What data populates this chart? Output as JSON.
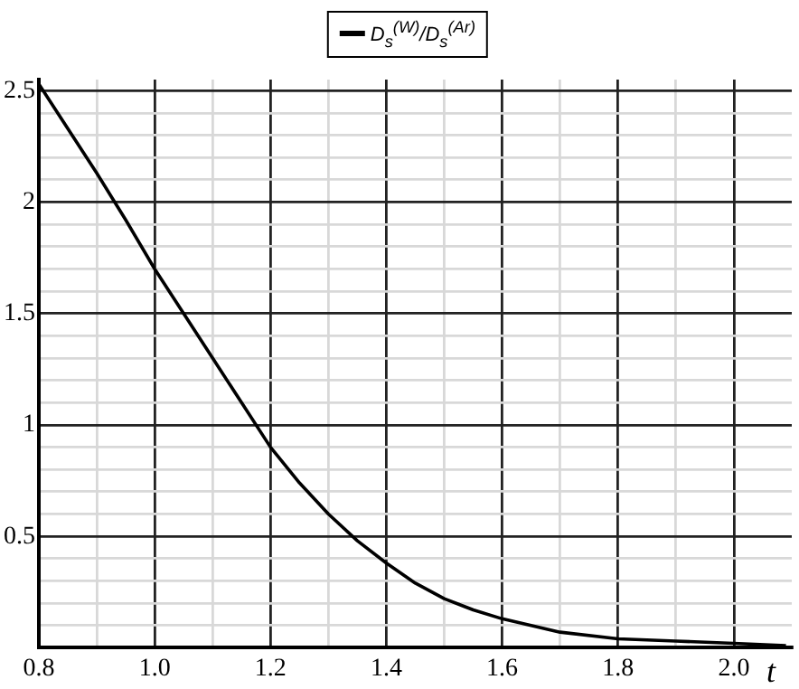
{
  "chart_data": {
    "type": "line",
    "xlabel": "t",
    "legend": "top",
    "x": [
      0.8,
      0.85,
      0.9,
      0.95,
      1.0,
      1.05,
      1.1,
      1.15,
      1.2,
      1.25,
      1.3,
      1.35,
      1.4,
      1.45,
      1.5,
      1.55,
      1.6,
      1.7,
      1.8,
      1.9,
      2.0,
      2.09
    ],
    "series": [
      {
        "name": "D$_{s}$$^{(W)}$/D$_{s}$$^{(Ar)}$",
        "color": "#000000",
        "values": [
          2.53,
          2.33,
          2.13,
          1.92,
          1.7,
          1.5,
          1.3,
          1.1,
          0.9,
          0.74,
          0.6,
          0.48,
          0.38,
          0.29,
          0.22,
          0.17,
          0.13,
          0.07,
          0.04,
          0.03,
          0.02,
          0.01
        ]
      }
    ],
    "xlim": [
      0.8,
      2.1
    ],
    "ylim": [
      0,
      2.55
    ],
    "xticks": [
      0.8,
      {
        "value": 0.9,
        "label": null
      },
      {
        "value": 1,
        "label": "1.0"
      },
      {
        "value": 1.1,
        "label": null
      },
      1.2,
      {
        "value": 1.3,
        "label": null
      },
      1.4,
      {
        "value": 1.5,
        "label": null
      },
      1.6,
      {
        "value": 1.7,
        "label": null
      },
      1.8,
      {
        "value": 1.9,
        "label": null
      },
      {
        "value": 2,
        "label": "2.0"
      }
    ],
    "yticks": [
      {
        "value": 0.1,
        "label": null
      },
      {
        "value": 0.2,
        "label": null
      },
      {
        "value": 0.3,
        "label": null
      },
      {
        "value": 0.4,
        "label": null
      },
      0.5,
      {
        "value": 0.6,
        "label": null
      },
      {
        "value": 0.7,
        "label": null
      },
      {
        "value": 0.8,
        "label": null
      },
      {
        "value": 0.9,
        "label": null
      },
      1,
      {
        "value": 1.1,
        "label": null
      },
      {
        "value": 1.2,
        "label": null
      },
      {
        "value": 1.3,
        "label": null
      },
      {
        "value": 1.4,
        "label": null
      },
      1.5,
      {
        "value": 1.6,
        "label": null
      },
      {
        "value": 1.7,
        "label": null
      },
      {
        "value": 1.8,
        "label": null
      },
      {
        "value": 1.9,
        "label": null
      },
      2,
      {
        "value": 2.1,
        "label": null
      },
      {
        "value": 2.2,
        "label": null
      },
      {
        "value": 2.3,
        "label": null
      },
      {
        "value": 2.4,
        "label": null
      },
      2.5
    ],
    "grid": true,
    "marker": "none",
    "line_style": "solid"
  }
}
